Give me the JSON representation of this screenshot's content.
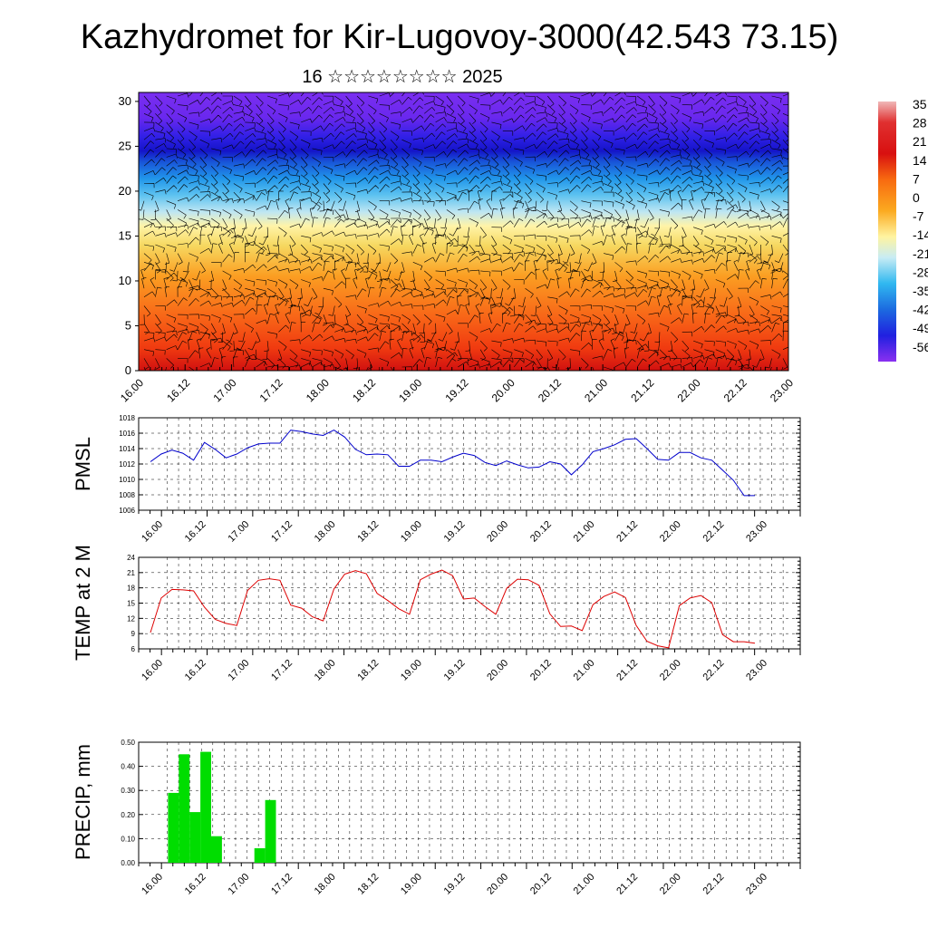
{
  "title": "Kazhydromet for Kir-Lugovoy-3000(42.543 73.15)",
  "subtitle": "16 ☆☆☆☆☆☆☆☆ 2025",
  "time_labels": [
    "16.00",
    "16.12",
    "17.00",
    "17.12",
    "18.00",
    "18.12",
    "19.00",
    "19.12",
    "20.00",
    "20.12",
    "21.00",
    "21.12",
    "22.00",
    "22.12",
    "23.00"
  ],
  "colors": {
    "pmsl_line": "#0000cc",
    "temp_line": "#dd0000",
    "precip_bar": "#00dd00"
  },
  "chart_data": [
    {
      "type": "heatmap",
      "name": "cross-section",
      "y_ticks": [
        0,
        5,
        10,
        15,
        20,
        25,
        30
      ],
      "ylim": [
        0,
        31
      ],
      "colorbar_labels": [
        "35",
        "28",
        "21",
        "14",
        "7",
        "0",
        "-7",
        "-14",
        "-21",
        "-28",
        "-35",
        "-42",
        "-49",
        "-56"
      ],
      "colorbar_range": [
        -56,
        35
      ]
    },
    {
      "type": "line",
      "name": "pmsl",
      "ylabel": "PMSL",
      "y_ticks": [
        1006,
        1008,
        1010,
        1012,
        1014,
        1016,
        1018
      ],
      "ylim": [
        1006,
        1018
      ],
      "x_step_hours": 3,
      "values": [
        1012.3,
        1013.3,
        1013.8,
        1013.4,
        1012.5,
        1014.8,
        1013.9,
        1012.8,
        1013.3,
        1014.1,
        1014.6,
        1014.7,
        1014.7,
        1016.4,
        1016.2,
        1015.9,
        1015.7,
        1016.4,
        1015.5,
        1013.9,
        1013.2,
        1013.3,
        1013.2,
        1011.7,
        1011.7,
        1012.5,
        1012.5,
        1012.3,
        1012.9,
        1013.4,
        1013.1,
        1012.2,
        1011.8,
        1012.4,
        1011.9,
        1011.5,
        1011.6,
        1012.3,
        1012.0,
        1010.6,
        1011.9,
        1013.6,
        1014.0,
        1014.5,
        1015.2,
        1015.3,
        1014.0,
        1012.6,
        1012.5,
        1013.5,
        1013.5,
        1012.8,
        1012.5,
        1011.2,
        1009.9,
        1007.9,
        1007.9
      ]
    },
    {
      "type": "line",
      "name": "temp",
      "ylabel": "TEMP at 2 M",
      "y_ticks": [
        6,
        9,
        12,
        15,
        18,
        21,
        24
      ],
      "ylim": [
        6,
        24
      ],
      "x_step_hours": 3,
      "values": [
        9.2,
        16.0,
        17.7,
        17.6,
        17.4,
        14.2,
        11.8,
        11.0,
        10.6,
        17.5,
        19.5,
        19.8,
        19.5,
        14.6,
        14.0,
        12.3,
        11.5,
        17.8,
        20.7,
        21.4,
        20.8,
        16.9,
        15.5,
        13.9,
        12.8,
        19.6,
        20.7,
        21.5,
        20.4,
        15.8,
        16.0,
        14.3,
        12.8,
        17.9,
        19.7,
        19.6,
        18.5,
        12.9,
        10.4,
        10.5,
        9.6,
        14.7,
        16.3,
        17.2,
        16.1,
        10.6,
        7.5,
        6.6,
        6.2,
        14.5,
        16.0,
        16.5,
        15.1,
        8.8,
        7.4,
        7.4,
        7.1
      ]
    },
    {
      "type": "bar",
      "name": "precip",
      "ylabel": "PRECIP, mm",
      "y_ticks": [
        "0.00",
        "0.10",
        "0.20",
        "0.30",
        "0.40",
        "0.50"
      ],
      "ylim": [
        0,
        0.5
      ],
      "x_step_hours": 3,
      "values": [
        0,
        0,
        0.29,
        0.45,
        0.21,
        0.46,
        0.11,
        0,
        0,
        0,
        0.06,
        0.26
      ]
    }
  ]
}
